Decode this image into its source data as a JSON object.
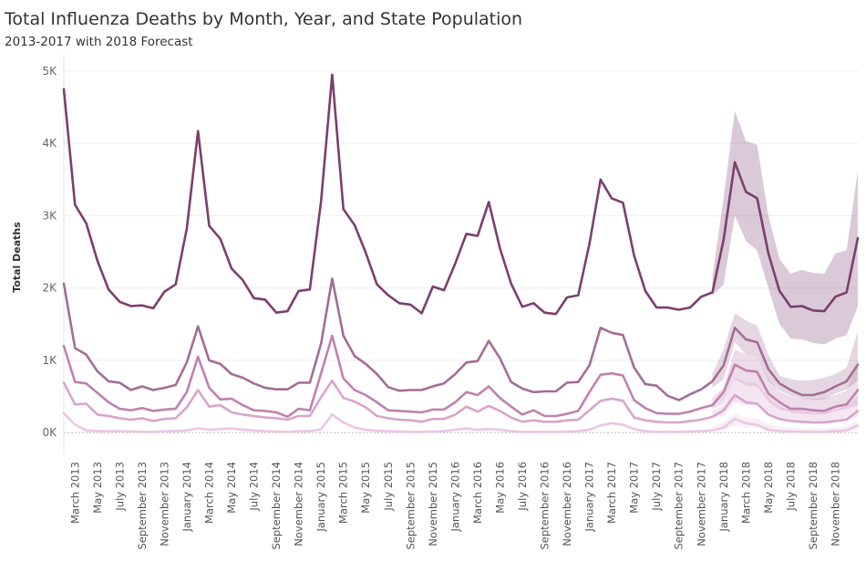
{
  "chart_data": {
    "type": "line",
    "title": "Total Influenza Deaths by Month, Year, and State Population",
    "subtitle": "2013-2017 with 2018 Forecast",
    "ylabel": "Total Deaths",
    "xlabel": "",
    "ylim": [
      -300,
      5100
    ],
    "y_ticks": [
      0,
      1000,
      2000,
      3000,
      4000,
      5000
    ],
    "y_tick_labels": [
      "0K",
      "1K",
      "2K",
      "3K",
      "4K",
      "5K"
    ],
    "grid": true,
    "x_start": "February 2013",
    "x_end": "December 2018",
    "x_tick_labels": [
      "March 2013",
      "May 2013",
      "July 2013",
      "September 2013",
      "November 2013",
      "January 2014",
      "March 2014",
      "May 2014",
      "July 2014",
      "September 2014",
      "November 2014",
      "January 2015",
      "March 2015",
      "May 2015",
      "July 2015",
      "September 2015",
      "November 2015",
      "January 2016",
      "March 2016",
      "May 2016",
      "July 2016",
      "September 2016",
      "November 2016",
      "January 2017",
      "March 2017",
      "May 2017",
      "July 2017",
      "September 2017",
      "November 2017",
      "January 2018",
      "March 2018",
      "May 2018",
      "July 2018",
      "September 2018",
      "November 2018"
    ],
    "forecast_start": "December 2017",
    "series": [
      {
        "color": "#7b3f6e",
        "values": [
          4750,
          3150,
          2900,
          2380,
          1980,
          1810,
          1750,
          1760,
          1720,
          1950,
          2050,
          2820,
          4170,
          2860,
          2680,
          2270,
          2110,
          1860,
          1840,
          1660,
          1680,
          1960,
          1980,
          3200,
          4950,
          3090,
          2870,
          2490,
          2050,
          1900,
          1790,
          1770,
          1650,
          2020,
          1970,
          2340,
          2750,
          2720,
          3190,
          2550,
          2060,
          1740,
          1790,
          1660,
          1640,
          1870,
          1900,
          2610,
          3500,
          3240,
          3180,
          2450,
          1960,
          1730,
          1730,
          1700,
          1730,
          1880,
          1940,
          2670,
          3740,
          3330,
          3240,
          2480,
          1960,
          1740,
          1750,
          1690,
          1680,
          1880,
          1940,
          2690
        ],
        "forecast_upper": [
          2150,
          3250,
          4450,
          4030,
          3980,
          3000,
          2400,
          2200,
          2250,
          2210,
          2200,
          2480,
          2520,
          3620
        ],
        "forecast_lower": [
          1900,
          2050,
          3000,
          2650,
          2520,
          2000,
          1500,
          1300,
          1290,
          1240,
          1220,
          1300,
          1350,
          1750
        ]
      },
      {
        "color": "#a36e96",
        "values": [
          2060,
          1170,
          1080,
          850,
          710,
          690,
          590,
          640,
          590,
          620,
          660,
          970,
          1470,
          1000,
          950,
          810,
          760,
          680,
          620,
          600,
          600,
          690,
          690,
          1230,
          2130,
          1340,
          1060,
          950,
          810,
          630,
          580,
          590,
          590,
          640,
          680,
          810,
          970,
          990,
          1270,
          1030,
          700,
          610,
          560,
          570,
          570,
          690,
          700,
          930,
          1450,
          1380,
          1350,
          900,
          670,
          650,
          510,
          450,
          530,
          600,
          710,
          930,
          1450,
          1290,
          1250,
          880,
          680,
          590,
          520,
          520,
          560,
          640,
          710,
          940
        ],
        "forecast_upper": [
          820,
          1150,
          1650,
          1550,
          1480,
          1080,
          790,
          740,
          720,
          730,
          760,
          810,
          900,
          1400
        ],
        "forecast_lower": [
          620,
          740,
          1250,
          1080,
          1050,
          720,
          580,
          510,
          470,
          450,
          460,
          540,
          600,
          720
        ]
      },
      {
        "color": "#c081b0",
        "values": [
          1200,
          700,
          680,
          550,
          420,
          330,
          310,
          340,
          300,
          320,
          330,
          560,
          1050,
          620,
          460,
          470,
          380,
          310,
          300,
          280,
          220,
          330,
          310,
          820,
          1340,
          750,
          590,
          520,
          420,
          310,
          300,
          290,
          280,
          320,
          320,
          420,
          560,
          520,
          640,
          480,
          360,
          250,
          310,
          230,
          230,
          260,
          300,
          560,
          800,
          820,
          790,
          450,
          340,
          270,
          260,
          260,
          290,
          340,
          380,
          560,
          940,
          860,
          840,
          540,
          420,
          330,
          330,
          310,
          300,
          360,
          390,
          590
        ],
        "forecast_upper": [
          480,
          620,
          1150,
          1080,
          1050,
          750,
          560,
          500,
          470,
          470,
          480,
          520,
          580,
          1020
        ],
        "forecast_lower": [
          330,
          400,
          740,
          650,
          640,
          430,
          320,
          280,
          260,
          250,
          250,
          300,
          330,
          380
        ]
      },
      {
        "color": "#d8a5cc",
        "values": [
          690,
          390,
          400,
          250,
          230,
          200,
          180,
          200,
          160,
          190,
          200,
          350,
          590,
          360,
          380,
          280,
          250,
          230,
          210,
          200,
          180,
          230,
          230,
          490,
          720,
          480,
          430,
          350,
          230,
          200,
          180,
          170,
          150,
          190,
          190,
          250,
          360,
          290,
          370,
          300,
          210,
          150,
          170,
          150,
          150,
          170,
          180,
          310,
          440,
          470,
          440,
          210,
          170,
          150,
          140,
          140,
          160,
          180,
          220,
          310,
          520,
          420,
          400,
          250,
          190,
          160,
          150,
          140,
          140,
          160,
          180,
          300
        ],
        "forecast_upper": [
          300,
          380,
          760,
          700,
          680,
          480,
          360,
          320,
          300,
          290,
          300,
          330,
          360,
          520
        ],
        "forecast_lower": [
          210,
          240,
          420,
          380,
          370,
          240,
          170,
          150,
          140,
          140,
          140,
          150,
          170,
          220
        ]
      },
      {
        "color": "#ebc6e2",
        "values": [
          270,
          110,
          30,
          20,
          20,
          20,
          15,
          10,
          10,
          20,
          20,
          30,
          60,
          40,
          50,
          60,
          40,
          30,
          20,
          15,
          10,
          20,
          20,
          50,
          250,
          140,
          70,
          40,
          25,
          20,
          15,
          10,
          10,
          15,
          20,
          40,
          60,
          40,
          50,
          40,
          20,
          10,
          10,
          10,
          10,
          15,
          20,
          40,
          100,
          130,
          110,
          50,
          20,
          10,
          10,
          10,
          15,
          20,
          30,
          70,
          190,
          130,
          110,
          40,
          20,
          15,
          10,
          10,
          10,
          20,
          30,
          100
        ],
        "forecast_upper": [
          90,
          140,
          260,
          210,
          200,
          120,
          80,
          70,
          60,
          60,
          60,
          70,
          90,
          170
        ],
        "forecast_lower": [
          20,
          30,
          100,
          70,
          60,
          20,
          10,
          5,
          5,
          5,
          5,
          10,
          15,
          40
        ]
      }
    ]
  }
}
